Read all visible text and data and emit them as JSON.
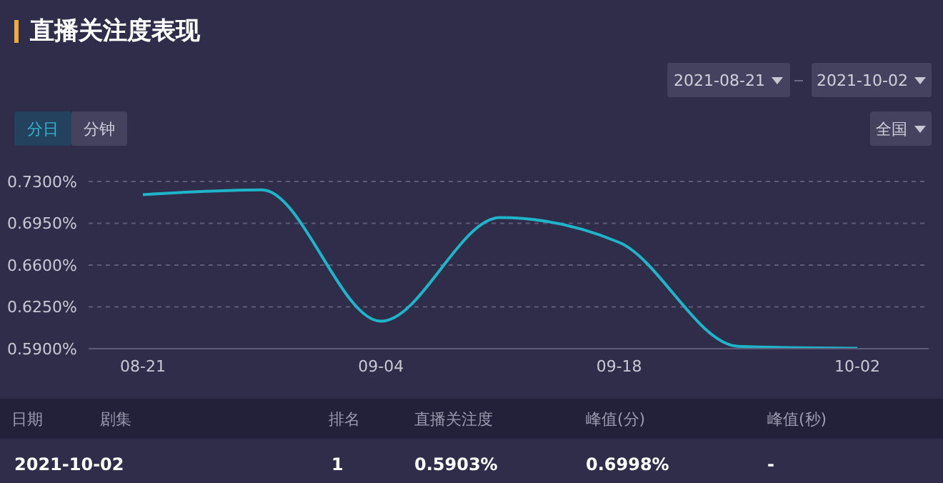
{
  "chart_data": {
    "type": "line",
    "title": "直播关注度表现",
    "categories": [
      "08-21",
      null,
      "09-04",
      null,
      "09-18",
      null,
      "10-02"
    ],
    "values": [
      0.719,
      0.723,
      0.613,
      0.6998,
      0.679,
      0.592,
      0.5903
    ],
    "color": "#1fb5c8",
    "ylim": [
      0.59,
      0.73
    ],
    "yticks": [
      {
        "value": 0.59,
        "label": "0.5900%"
      },
      {
        "value": 0.625,
        "label": "0.6250%"
      },
      {
        "value": 0.66,
        "label": "0.6600%"
      },
      {
        "value": 0.695,
        "label": "0.6950%"
      },
      {
        "value": 0.73,
        "label": "0.7300%"
      }
    ],
    "grid": "y",
    "annotations": [
      "2021-08-21",
      "2021-10-02",
      "分日",
      "分钟",
      "全国",
      "日期",
      "剧集",
      "排名",
      "直播关注度",
      "峰值(分)",
      "峰值(秒)",
      "2021-10-02",
      "1",
      "0.5903%",
      "0.6998%",
      "-"
    ]
  }
}
